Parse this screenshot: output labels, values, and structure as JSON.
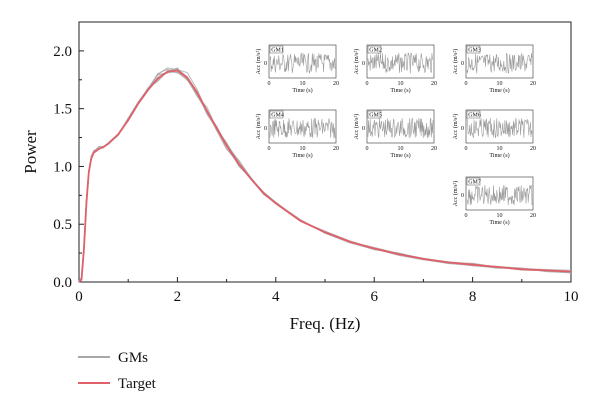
{
  "chart_data": {
    "type": "line",
    "xlabel": "Freq. (Hz)",
    "ylabel": "Power",
    "xlim": [
      0,
      10
    ],
    "ylim": [
      0,
      2.25
    ],
    "xticks": [
      "0",
      "2",
      "4",
      "6",
      "8",
      "10"
    ],
    "yticks": [
      "0.0",
      "0.5",
      "1.0",
      "1.5",
      "2.0"
    ],
    "grid": false,
    "legend_position": "bottom-left",
    "colors": {
      "target": "#e0606a",
      "gms": "#a8a8a8"
    },
    "series": [
      {
        "name": "GMs",
        "x": [
          0.0,
          0.05,
          0.1,
          0.15,
          0.2,
          0.25,
          0.3,
          0.4,
          0.5,
          0.6,
          0.8,
          1.0,
          1.2,
          1.4,
          1.6,
          1.8,
          2.0,
          2.2,
          2.4,
          2.6,
          2.8,
          3.0,
          3.25,
          3.5,
          3.75,
          4.0,
          4.5,
          5.0,
          5.5,
          6.0,
          6.5,
          7.0,
          7.5,
          8.0,
          8.5,
          9.0,
          9.5,
          10.0
        ],
        "y": [
          0.0,
          0.03,
          0.3,
          0.7,
          0.96,
          1.08,
          1.13,
          1.16,
          1.17,
          1.2,
          1.28,
          1.41,
          1.55,
          1.67,
          1.77,
          1.84,
          1.84,
          1.78,
          1.64,
          1.48,
          1.33,
          1.18,
          1.02,
          0.89,
          0.77,
          0.68,
          0.53,
          0.43,
          0.35,
          0.29,
          0.24,
          0.2,
          0.17,
          0.15,
          0.13,
          0.11,
          0.1,
          0.09
        ]
      },
      {
        "name": "Target",
        "x": [
          0.0,
          0.05,
          0.1,
          0.15,
          0.2,
          0.25,
          0.3,
          0.4,
          0.5,
          0.6,
          0.8,
          1.0,
          1.2,
          1.4,
          1.6,
          1.8,
          2.0,
          2.2,
          2.4,
          2.6,
          2.8,
          3.0,
          3.25,
          3.5,
          3.75,
          4.0,
          4.5,
          5.0,
          5.5,
          6.0,
          6.5,
          7.0,
          7.5,
          8.0,
          8.5,
          9.0,
          9.5,
          10.0
        ],
        "y": [
          0.0,
          0.02,
          0.28,
          0.68,
          0.95,
          1.07,
          1.12,
          1.15,
          1.17,
          1.2,
          1.28,
          1.4,
          1.54,
          1.66,
          1.76,
          1.82,
          1.83,
          1.77,
          1.64,
          1.48,
          1.33,
          1.18,
          1.02,
          0.89,
          0.77,
          0.68,
          0.53,
          0.43,
          0.35,
          0.29,
          0.24,
          0.2,
          0.17,
          0.15,
          0.13,
          0.11,
          0.1,
          0.09
        ]
      }
    ],
    "insets": [
      {
        "title": "GM1",
        "ylabel": "Acc (m/s²)",
        "xlabel": "Time (s)",
        "xticks": [
          "0",
          "10",
          "20"
        ],
        "yticks": [
          "0"
        ]
      },
      {
        "title": "GM2",
        "ylabel": "Acc (m/s²)",
        "xlabel": "Time (s)",
        "xticks": [
          "0",
          "10",
          "20"
        ],
        "yticks": [
          "0"
        ]
      },
      {
        "title": "GM3",
        "ylabel": "Acc (m/s²)",
        "xlabel": "Time (s)",
        "xticks": [
          "0",
          "10",
          "20"
        ],
        "yticks": [
          "0"
        ]
      },
      {
        "title": "GM4",
        "ylabel": "Acc (m/s²)",
        "xlabel": "Time (s)",
        "xticks": [
          "0",
          "10",
          "20"
        ],
        "yticks": [
          "0"
        ]
      },
      {
        "title": "GM5",
        "ylabel": "Acc (m/s²)",
        "xlabel": "Time (s)",
        "xticks": [
          "0",
          "10",
          "20"
        ],
        "yticks": [
          "0"
        ]
      },
      {
        "title": "GM6",
        "ylabel": "Acc (m/s²)",
        "xlabel": "Time (s)",
        "xticks": [
          "0",
          "10",
          "20"
        ],
        "yticks": [
          "0"
        ]
      },
      {
        "title": "GM7",
        "ylabel": "Acc (m/s²)",
        "xlabel": "Time (s)",
        "xticks": [
          "0",
          "10",
          "20"
        ],
        "yticks": [
          "0"
        ]
      }
    ]
  }
}
